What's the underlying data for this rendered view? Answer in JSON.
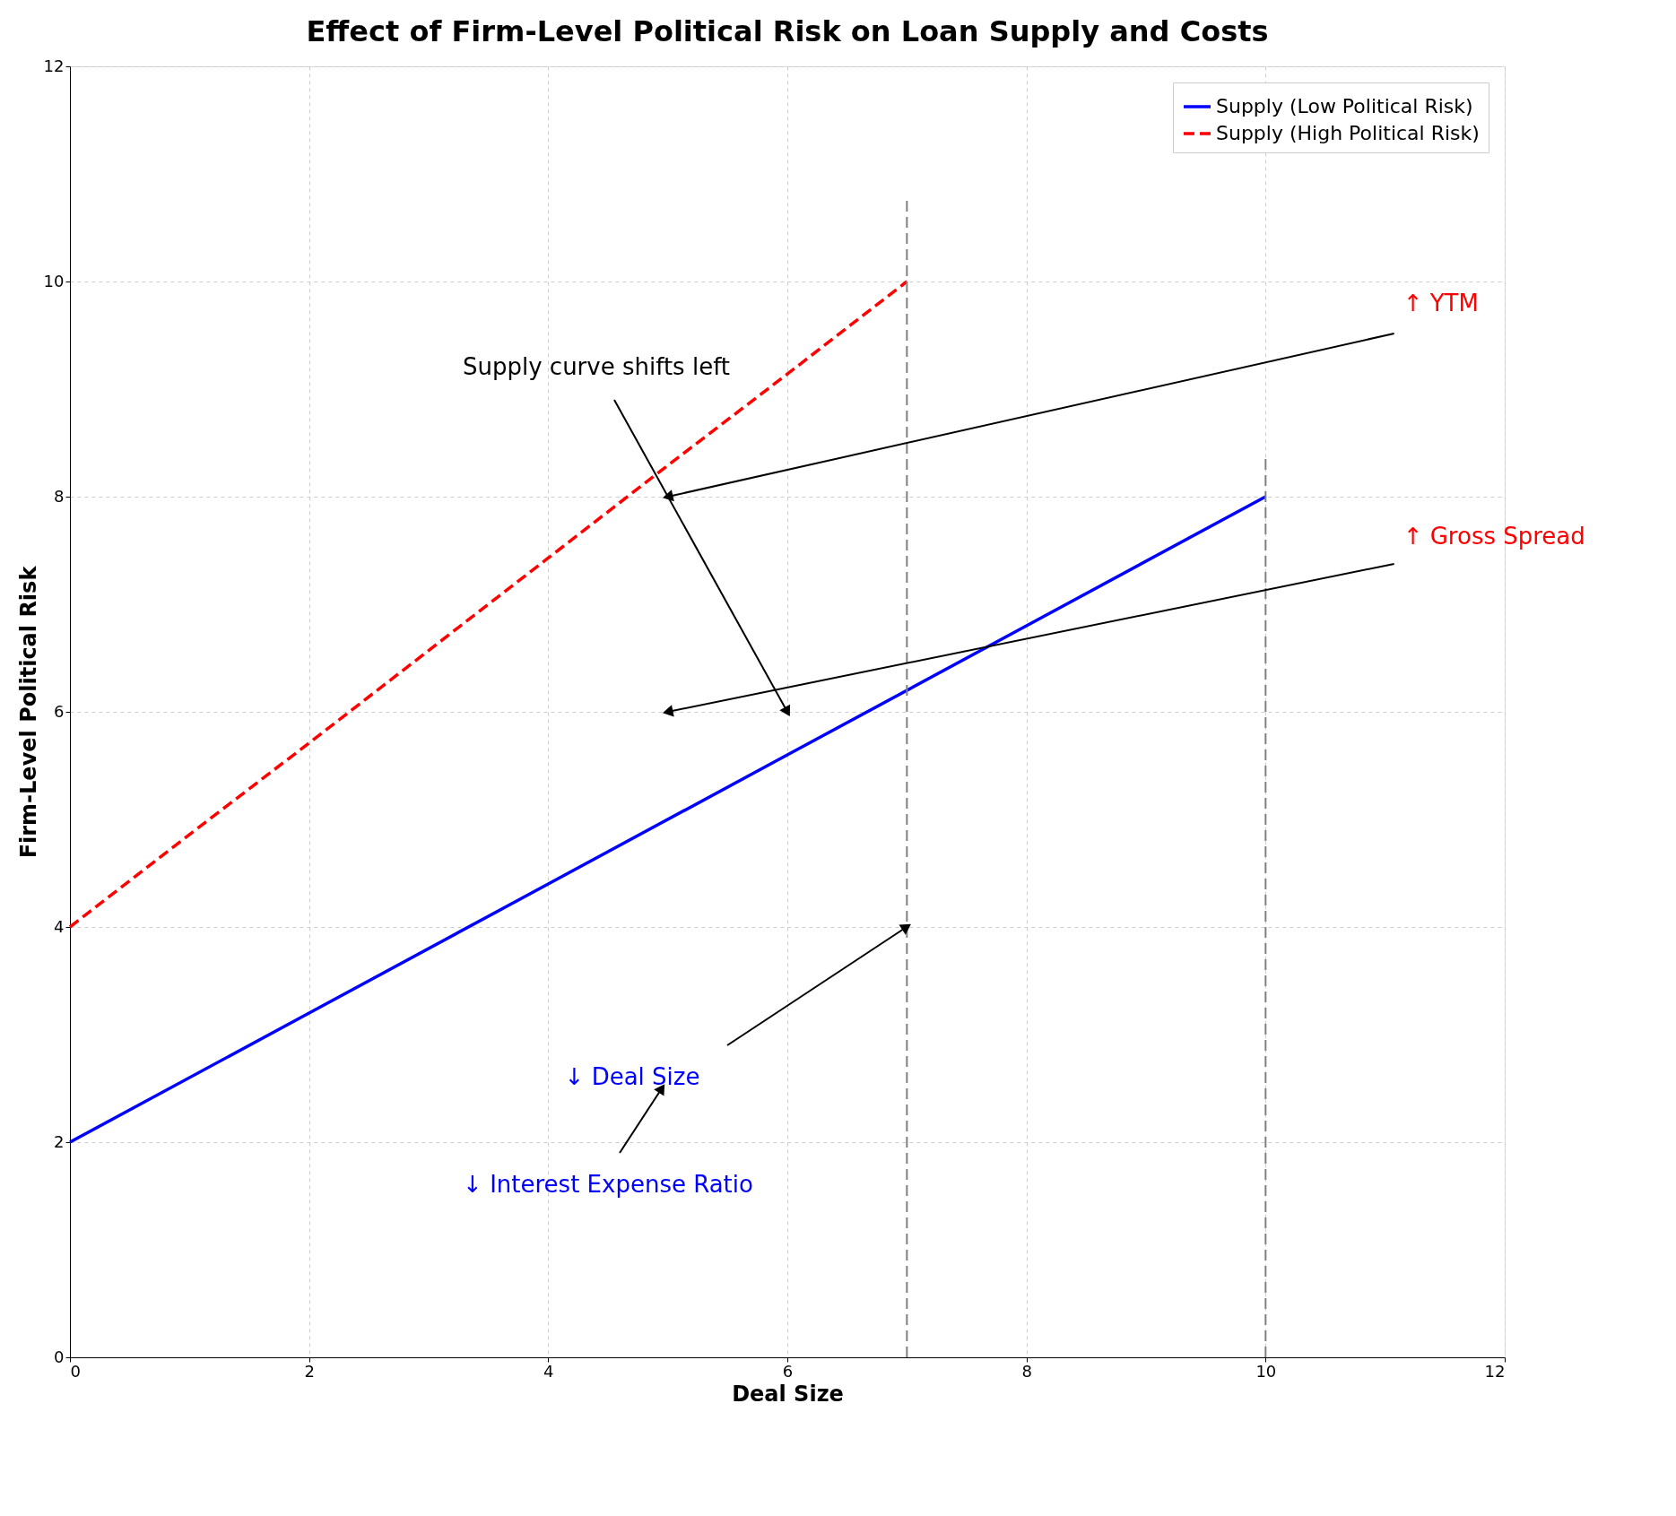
{
  "chart_data": {
    "type": "line",
    "title": "Effect of Firm-Level Political Risk on Loan Supply and Costs",
    "xlabel": "Deal Size",
    "ylabel": "Firm-Level Political Risk",
    "xlim": [
      0,
      12
    ],
    "ylim": [
      0,
      12
    ],
    "xticks": [
      0,
      2,
      4,
      6,
      8,
      10,
      12
    ],
    "yticks": [
      0,
      2,
      4,
      6,
      8,
      10,
      12
    ],
    "grid": true,
    "legend": "top right",
    "marker": "none",
    "series": [
      {
        "name": "Supply (Low Political Risk)",
        "color": "#0000ff",
        "line_style": "solid",
        "x": [
          0,
          2,
          4,
          6,
          8,
          10
        ],
        "values": [
          2,
          3.2,
          4.4,
          5.6,
          6.8,
          8
        ]
      },
      {
        "name": "Supply (High Political Risk)",
        "color": "#ff0000",
        "line_style": "dashed",
        "x": [
          0,
          1,
          2,
          3,
          4,
          5,
          6,
          7
        ],
        "values": [
          4,
          4.86,
          5.71,
          6.57,
          7.43,
          8.29,
          9.14,
          10
        ]
      },
      {
        "color": "#808080",
        "line_style": "dashed",
        "x": [
          7,
          7
        ],
        "values": [
          0,
          10.8
        ]
      },
      {
        "color": "#808080",
        "line_style": "dashed",
        "x": [
          10,
          10
        ],
        "values": [
          0,
          8.4
        ]
      }
    ],
    "annotations": [
      "Supply curve shifts left",
      {
        "text": "↑ YTM",
        "x": 5,
        "y": 8
      },
      {
        "text": "↑ Gross Spread",
        "x": 5,
        "y": 6
      },
      "↓ Deal Size",
      "↓ Interest Expense Ratio"
    ]
  }
}
